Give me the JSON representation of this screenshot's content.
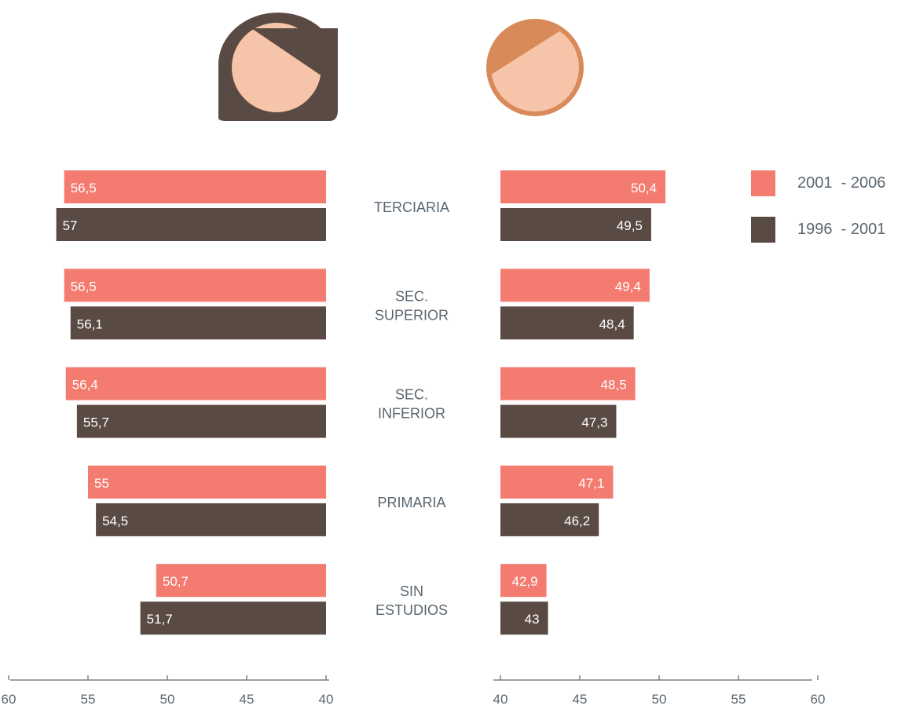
{
  "chart_data": {
    "type": "bar",
    "categories": [
      "TERCIARIA",
      "SEC. SUPERIOR",
      "SEC. INFERIOR",
      "PRIMARIA",
      "SIN ESTUDIOS"
    ],
    "category_lines": [
      [
        "TERCIARIA"
      ],
      [
        "SEC.",
        "SUPERIOR"
      ],
      [
        "SEC.",
        "INFERIOR"
      ],
      [
        "PRIMARIA"
      ],
      [
        "SIN",
        "ESTUDIOS"
      ]
    ],
    "panels": [
      {
        "icon": "woman-face-icon",
        "direction": "left",
        "xlim": [
          40,
          60
        ],
        "ticks": [
          60,
          55,
          50,
          45,
          40
        ],
        "series": [
          {
            "name": "2001  - 2006",
            "values": [
              56.5,
              56.5,
              56.4,
              55,
              50.7
            ],
            "labels": [
              "56,5",
              "56,5",
              "56,4",
              "55",
              "50,7"
            ]
          },
          {
            "name": "1996  - 2001",
            "values": [
              57,
              56.1,
              55.7,
              54.5,
              51.7
            ],
            "labels": [
              "57",
              "56,1",
              "55,7",
              "54,5",
              "51,7"
            ]
          }
        ]
      },
      {
        "icon": "man-face-icon",
        "direction": "right",
        "xlim": [
          40,
          60
        ],
        "ticks": [
          40,
          45,
          50,
          55,
          60
        ],
        "series": [
          {
            "name": "2001  - 2006",
            "values": [
              50.4,
              49.4,
              48.5,
              47.1,
              42.9
            ],
            "labels": [
              "50,4",
              "49,4",
              "48,5",
              "47,1",
              "42,9"
            ]
          },
          {
            "name": "1996  - 2001",
            "values": [
              49.5,
              48.4,
              47.3,
              46.2,
              43
            ],
            "labels": [
              "49,5",
              "48,4",
              "47,3",
              "46,2",
              "43"
            ]
          }
        ]
      }
    ],
    "legend": {
      "position": "top-right",
      "entries": [
        {
          "label": "2001  - 2006",
          "color": "#f37b70"
        },
        {
          "label": "1996  - 2001",
          "color": "#5a4a44"
        }
      ]
    },
    "colors": {
      "series_a": "#f37b70",
      "series_b": "#5a4a44",
      "text": "#5a6670",
      "axis": "#808080",
      "skin": "#f6c4a8",
      "woman_hair": "#5a4a44",
      "man_hair": "#d88a58"
    },
    "grid": false
  }
}
